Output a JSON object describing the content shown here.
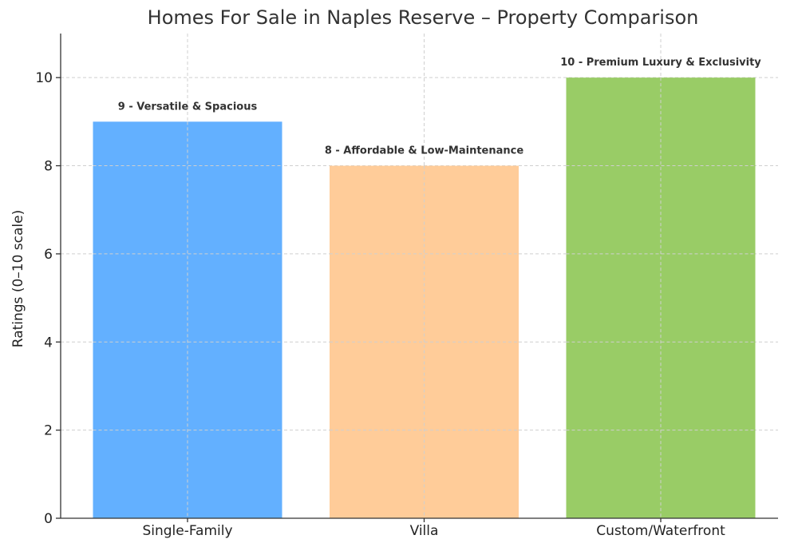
{
  "chart_data": {
    "type": "bar",
    "title": "Homes For Sale in Naples Reserve – Property Comparison",
    "xlabel": "",
    "ylabel": "Ratings (0–10 scale)",
    "categories": [
      "Single-Family",
      "Villa",
      "Custom/Waterfront"
    ],
    "values": [
      9,
      8,
      10
    ],
    "annotations": [
      "9 - Versatile & Spacious",
      "8 - Affordable & Low-Maintenance",
      "10 - Premium Luxury & Exclusivity"
    ],
    "colors": [
      "#63b0ff",
      "#ffcc99",
      "#99cc66"
    ],
    "ylim": [
      0,
      11
    ],
    "yticks": [
      0,
      2,
      4,
      6,
      8,
      10
    ],
    "grid": true,
    "legend": "none"
  }
}
